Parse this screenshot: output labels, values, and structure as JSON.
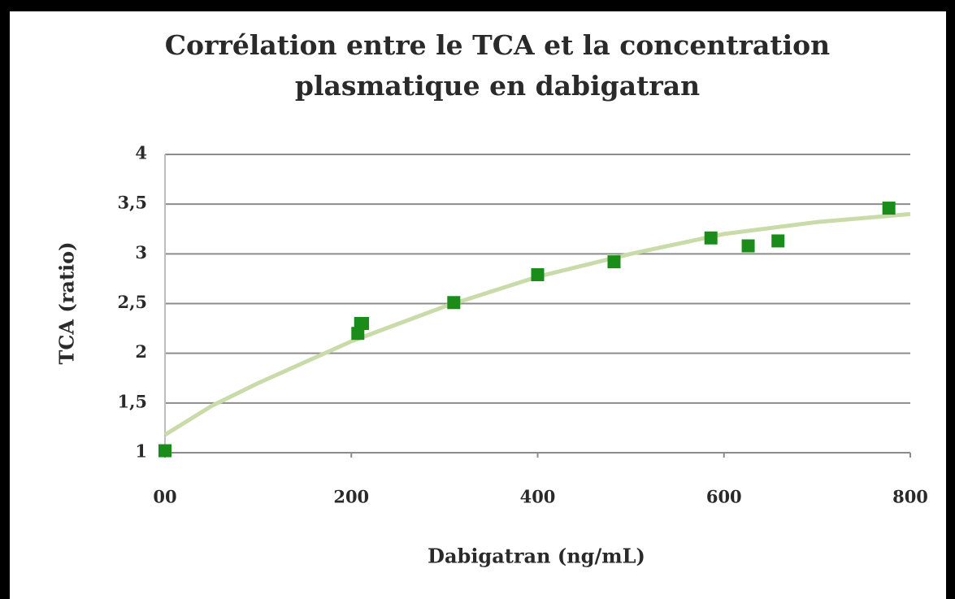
{
  "chart_data": {
    "type": "scatter",
    "title": [
      "Corrélation entre le TCA et la concentration",
      "plasmatique en dabigatran"
    ],
    "x_label": "Dabigatran (ng/mL)",
    "y_label": "TCA (ratio)",
    "xlim": [
      0,
      800
    ],
    "xticks": [
      {
        "value": 0,
        "label": "00"
      },
      200,
      400,
      600,
      800
    ],
    "ylim": [
      1,
      4
    ],
    "yticks": [
      1,
      {
        "value": 1.5,
        "label": "1,5"
      },
      2,
      {
        "value": 2.5,
        "label": "2,5"
      },
      3,
      {
        "value": 3.5,
        "label": "3,5"
      },
      4
    ],
    "grid": true,
    "series": [
      {
        "color": "#1a8c1a",
        "x": [
          0,
          207,
          210,
          212,
          310,
          400,
          482,
          586,
          626,
          658,
          777
        ],
        "values": [
          1.02,
          2.2,
          2.3,
          2.3,
          2.51,
          2.79,
          2.92,
          3.16,
          3.08,
          3.13,
          3.46
        ]
      }
    ],
    "trendline": {
      "color": "#c8dba8",
      "x": [
        0,
        50,
        100,
        200,
        300,
        400,
        500,
        600,
        700,
        800
      ],
      "values": [
        1.18,
        1.47,
        1.7,
        2.12,
        2.47,
        2.77,
        3.0,
        3.2,
        3.32,
        3.4
      ]
    }
  }
}
